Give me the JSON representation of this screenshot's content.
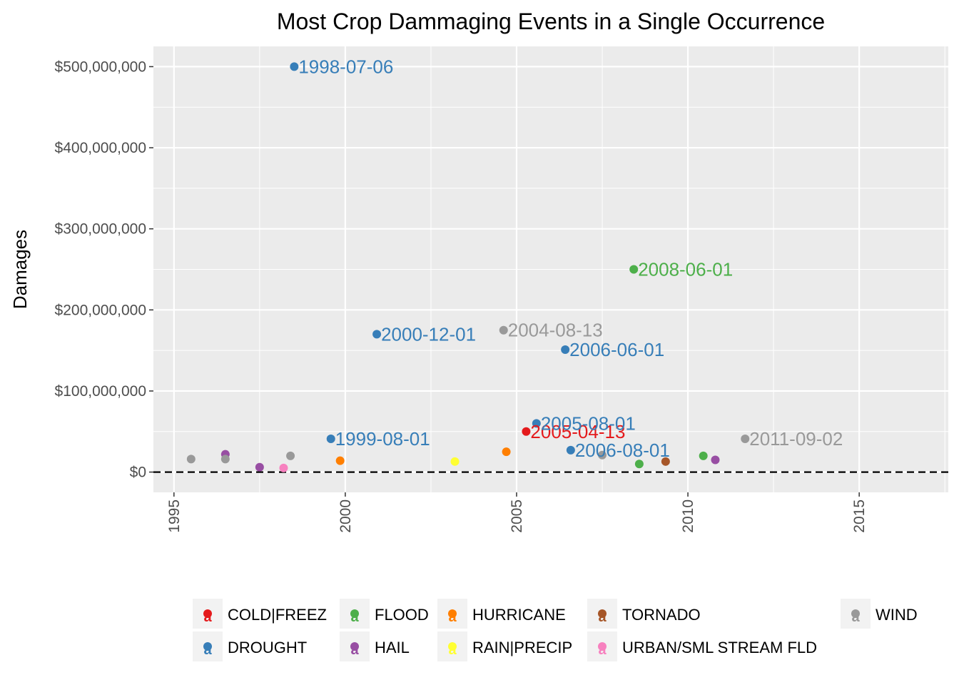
{
  "chart_data": {
    "type": "scatter",
    "title": "Most Crop Dammaging Events in a Single Occurrence",
    "xlabel": "",
    "ylabel": "Damages",
    "xlim": [
      1994.4,
      2017.6
    ],
    "ylim": [
      -25000000,
      525000000
    ],
    "x_ticks": [
      1995,
      2000,
      2005,
      2010,
      2015
    ],
    "y_ticks": [
      {
        "value": 0,
        "label": "$0"
      },
      {
        "value": 100000000,
        "label": "$100,000,000"
      },
      {
        "value": 200000000,
        "label": "$200,000,000"
      },
      {
        "value": 300000000,
        "label": "$300,000,000"
      },
      {
        "value": 400000000,
        "label": "$400,000,000"
      },
      {
        "value": 500000000,
        "label": "$500,000,000"
      }
    ],
    "grid": true,
    "background": "#ebebeb",
    "reference_line": {
      "y": 0,
      "style": "dashed"
    },
    "legend": {
      "position": "bottom",
      "layout": "columns",
      "key_glyph": "a"
    },
    "series": [
      {
        "name": "COLD|FREEZ",
        "color": "#e41a1c",
        "points": [
          {
            "x": 2005.28,
            "y": 50000000,
            "label": "2005-04-13"
          }
        ]
      },
      {
        "name": "DROUGHT",
        "color": "#377eb8",
        "points": [
          {
            "x": 1998.51,
            "y": 500000000,
            "label": "1998-07-06"
          },
          {
            "x": 1999.58,
            "y": 41000000,
            "label": "1999-08-01"
          },
          {
            "x": 2000.92,
            "y": 170000000,
            "label": "2000-12-01"
          },
          {
            "x": 2005.58,
            "y": 60000000,
            "label": "2005-08-01"
          },
          {
            "x": 2006.42,
            "y": 151000000,
            "label": "2006-06-01"
          },
          {
            "x": 2006.58,
            "y": 27000000,
            "label": "2006-08-01"
          }
        ]
      },
      {
        "name": "FLOOD",
        "color": "#4daf4a",
        "points": [
          {
            "x": 2008.42,
            "y": 250000000,
            "label": "2008-06-01"
          },
          {
            "x": 2008.58,
            "y": 10000000
          },
          {
            "x": 2010.45,
            "y": 20000000
          }
        ]
      },
      {
        "name": "HAIL",
        "color": "#984ea3",
        "points": [
          {
            "x": 1996.5,
            "y": 22000000
          },
          {
            "x": 1997.5,
            "y": 6000000
          },
          {
            "x": 2010.8,
            "y": 15000000
          }
        ]
      },
      {
        "name": "HURRICANE",
        "color": "#ff7f00",
        "points": [
          {
            "x": 1999.85,
            "y": 14000000
          },
          {
            "x": 2004.7,
            "y": 25000000
          }
        ]
      },
      {
        "name": "RAIN|PRECIP",
        "color": "#ffff33",
        "points": [
          {
            "x": 2003.2,
            "y": 13000000
          }
        ]
      },
      {
        "name": "TORNADO",
        "color": "#a65628",
        "points": [
          {
            "x": 2009.35,
            "y": 13000000
          }
        ]
      },
      {
        "name": "URBAN/SML STREAM FLD",
        "color": "#f781bf",
        "points": [
          {
            "x": 1998.2,
            "y": 5000000
          }
        ]
      },
      {
        "name": "WIND",
        "color": "#999999",
        "points": [
          {
            "x": 1995.5,
            "y": 16000000
          },
          {
            "x": 1996.5,
            "y": 16000000
          },
          {
            "x": 1998.4,
            "y": 20000000
          },
          {
            "x": 2004.62,
            "y": 175000000,
            "label": "2004-08-13"
          },
          {
            "x": 2007.5,
            "y": 21000000
          },
          {
            "x": 2011.67,
            "y": 41000000,
            "label": "2011-09-02"
          }
        ]
      }
    ]
  }
}
